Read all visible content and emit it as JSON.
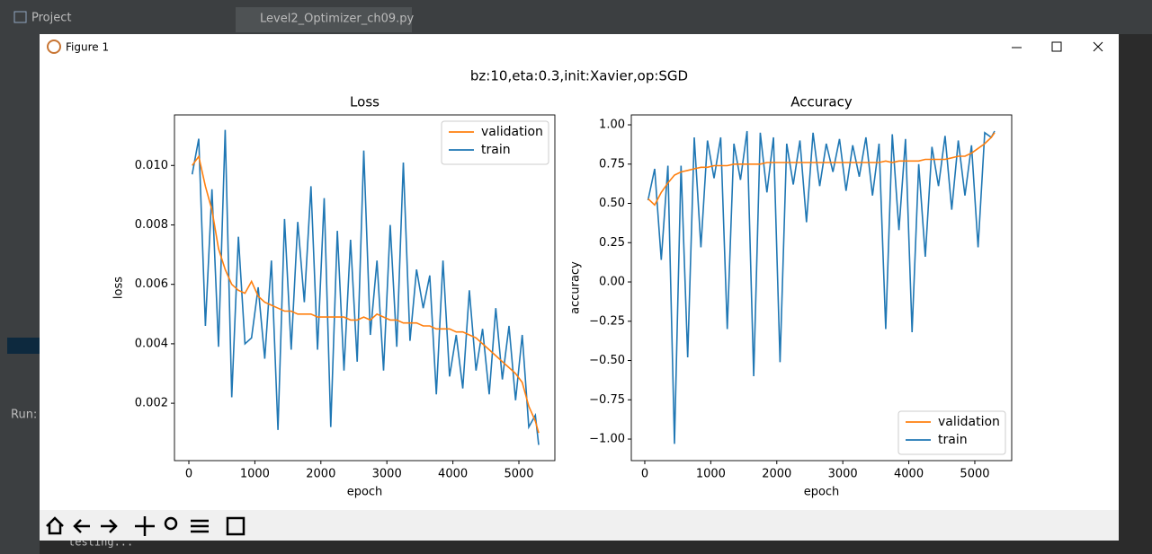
{
  "window": {
    "project": "Project",
    "tab": "Level2_Optimizer_ch09.py",
    "figure_title": "Figure 1",
    "suptitle": "bz:10,eta:0.3,init:Xavier,op:SGD",
    "run_label": "Run:",
    "console_text": "testing..."
  },
  "chart_data": [
    {
      "type": "line",
      "title": "Loss",
      "xlabel": "epoch",
      "ylabel": "loss",
      "x": [
        50,
        150,
        250,
        350,
        450,
        550,
        650,
        750,
        850,
        950,
        1050,
        1150,
        1250,
        1350,
        1450,
        1550,
        1650,
        1750,
        1850,
        1950,
        2050,
        2150,
        2250,
        2350,
        2450,
        2550,
        2650,
        2750,
        2850,
        2950,
        3050,
        3150,
        3250,
        3350,
        3450,
        3550,
        3650,
        3750,
        3850,
        3950,
        4050,
        4150,
        4250,
        4350,
        4450,
        4550,
        4650,
        4750,
        4850,
        4950,
        5050,
        5150,
        5250,
        5300
      ],
      "series": [
        {
          "name": "validation",
          "color": "#ff7f0e",
          "values": [
            0.01,
            0.0103,
            0.0093,
            0.0085,
            0.0072,
            0.0065,
            0.006,
            0.0058,
            0.0057,
            0.0061,
            0.0056,
            0.0054,
            0.0053,
            0.0052,
            0.0051,
            0.0051,
            0.005,
            0.005,
            0.005,
            0.0049,
            0.0049,
            0.0049,
            0.0049,
            0.0049,
            0.0048,
            0.0048,
            0.0049,
            0.0048,
            0.005,
            0.0049,
            0.0048,
            0.0048,
            0.0047,
            0.0047,
            0.0047,
            0.0046,
            0.0046,
            0.0045,
            0.0045,
            0.0045,
            0.0044,
            0.0044,
            0.0043,
            0.0042,
            0.004,
            0.0038,
            0.0036,
            0.0034,
            0.0032,
            0.003,
            0.0027,
            0.0019,
            0.0014,
            0.001
          ]
        },
        {
          "name": "train",
          "color": "#1f77b4",
          "values": [
            0.0097,
            0.0109,
            0.0046,
            0.0092,
            0.0039,
            0.0112,
            0.0022,
            0.0076,
            0.004,
            0.0042,
            0.0059,
            0.0035,
            0.0068,
            0.0011,
            0.0082,
            0.0038,
            0.0081,
            0.0054,
            0.0093,
            0.0038,
            0.0089,
            0.0012,
            0.0078,
            0.0031,
            0.0075,
            0.0034,
            0.0105,
            0.0043,
            0.0068,
            0.0031,
            0.008,
            0.0039,
            0.0101,
            0.0041,
            0.0065,
            0.0052,
            0.0063,
            0.0023,
            0.0068,
            0.0029,
            0.0043,
            0.0025,
            0.0058,
            0.0031,
            0.0045,
            0.0023,
            0.0052,
            0.0028,
            0.0046,
            0.0021,
            0.0043,
            0.0012,
            0.0016,
            0.0006
          ]
        }
      ],
      "xlim": [
        -218,
        5545
      ],
      "xticks": [
        0,
        1000,
        2000,
        3000,
        4000,
        5000
      ],
      "ylim": [
        7e-05,
        0.0117
      ],
      "yticks": [
        0.002,
        0.004,
        0.006,
        0.008,
        {
          "value": 0.01,
          "label": "0.010"
        }
      ],
      "legend": "upper right"
    },
    {
      "type": "line",
      "title": "Accuracy",
      "xlabel": "epoch",
      "ylabel": "accuracy",
      "x": [
        50,
        150,
        250,
        350,
        450,
        550,
        650,
        750,
        850,
        950,
        1050,
        1150,
        1250,
        1350,
        1450,
        1550,
        1650,
        1750,
        1850,
        1950,
        2050,
        2150,
        2250,
        2350,
        2450,
        2550,
        2650,
        2750,
        2850,
        2950,
        3050,
        3150,
        3250,
        3350,
        3450,
        3550,
        3650,
        3750,
        3850,
        3950,
        4050,
        4150,
        4250,
        4350,
        4450,
        4550,
        4650,
        4750,
        4850,
        4950,
        5050,
        5150,
        5250,
        5300
      ],
      "series": [
        {
          "name": "validation",
          "color": "#ff7f0e",
          "values": [
            0.53,
            0.49,
            0.57,
            0.63,
            0.68,
            0.7,
            0.71,
            0.72,
            0.73,
            0.73,
            0.74,
            0.74,
            0.74,
            0.75,
            0.75,
            0.75,
            0.75,
            0.75,
            0.76,
            0.76,
            0.76,
            0.76,
            0.76,
            0.76,
            0.76,
            0.76,
            0.76,
            0.76,
            0.76,
            0.76,
            0.76,
            0.76,
            0.76,
            0.76,
            0.76,
            0.76,
            0.77,
            0.76,
            0.77,
            0.77,
            0.77,
            0.77,
            0.78,
            0.78,
            0.78,
            0.78,
            0.79,
            0.8,
            0.8,
            0.82,
            0.85,
            0.88,
            0.92,
            0.95
          ]
        },
        {
          "name": "train",
          "color": "#1f77b4",
          "values": [
            0.52,
            0.72,
            0.14,
            0.74,
            -1.03,
            0.74,
            -0.48,
            0.92,
            0.22,
            0.9,
            0.66,
            0.92,
            -0.3,
            0.88,
            0.65,
            0.96,
            -0.6,
            0.95,
            0.57,
            0.92,
            -0.51,
            0.88,
            0.62,
            0.9,
            0.38,
            0.95,
            0.61,
            0.88,
            0.7,
            0.91,
            0.58,
            0.87,
            0.67,
            0.92,
            0.55,
            0.88,
            -0.3,
            0.94,
            0.33,
            0.91,
            -0.32,
            0.75,
            0.16,
            0.86,
            0.61,
            0.93,
            0.46,
            0.9,
            0.55,
            0.87,
            0.22,
            0.95,
            0.92,
            0.96
          ]
        }
      ],
      "xlim": [
        -204,
        5559
      ],
      "xticks": [
        0,
        1000,
        2000,
        3000,
        4000,
        5000
      ],
      "ylim": [
        -1.137,
        1.063
      ],
      "yticks": [
        {
          "value": -1,
          "label": "−1.00"
        },
        {
          "value": -0.75,
          "label": "−0.75"
        },
        {
          "value": -0.5,
          "label": "−0.50"
        },
        {
          "value": -0.25,
          "label": "−0.25"
        },
        {
          "value": 0,
          "label": "0.00"
        },
        {
          "value": 0.25,
          "label": "0.25"
        },
        {
          "value": 0.5,
          "label": "0.50"
        },
        {
          "value": 0.75,
          "label": "0.75"
        },
        {
          "value": 1,
          "label": "1.00"
        }
      ],
      "legend": "lower right"
    }
  ]
}
